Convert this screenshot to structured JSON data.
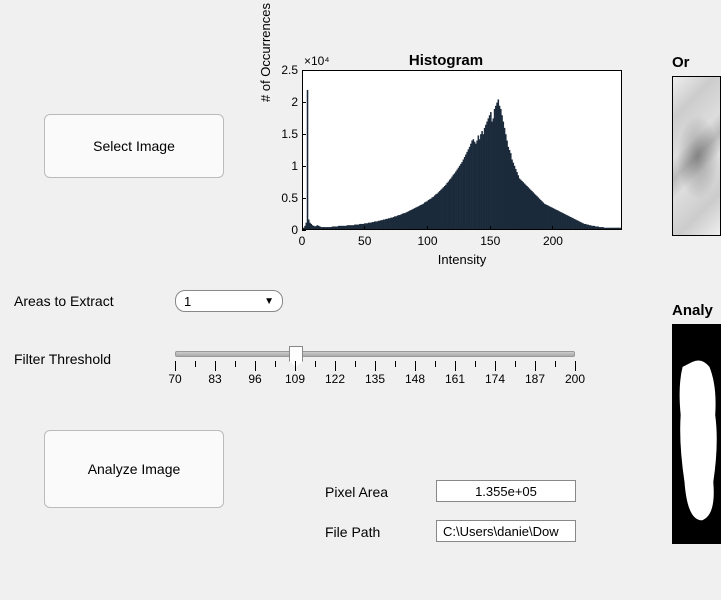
{
  "buttons": {
    "select_image": "Select Image",
    "analyze_image": "Analyze Image"
  },
  "labels": {
    "areas_to_extract": "Areas to Extract",
    "filter_threshold": "Filter Threshold",
    "pixel_area": "Pixel Area",
    "file_path": "File Path"
  },
  "dropdown": {
    "areas_value": "1"
  },
  "slider": {
    "min": 70,
    "max": 200,
    "value": 109,
    "major_step": 13,
    "major_labels": [
      "70",
      "83",
      "96",
      "109",
      "122",
      "135",
      "148",
      "161",
      "174",
      "187",
      "200"
    ],
    "track_color": "#b8b8b8",
    "thumb_color": "#ffffff"
  },
  "fields": {
    "pixel_area": "1.355e+05",
    "file_path": "C:\\Users\\danie\\Dow"
  },
  "histogram": {
    "type": "bar",
    "title": "Histogram",
    "xlabel": "Intensity",
    "ylabel": "# of Occurrences",
    "exponent_label": "×10⁴",
    "xlim": [
      0,
      255
    ],
    "ylim": [
      0,
      2.5
    ],
    "xtick_step": 50,
    "ytick_step": 0.5,
    "xticks": [
      0,
      50,
      100,
      150,
      200
    ],
    "yticks": [
      0,
      0.5,
      1,
      1.5,
      2,
      2.5
    ],
    "background_color": "#ffffff",
    "bar_color": "#1b2a3a",
    "border_color": "#000000",
    "title_fontsize": 15,
    "label_fontsize": 13,
    "tick_fontsize": 12,
    "values": [
      0.02,
      0.05,
      0.1,
      2.2,
      0.15,
      0.1,
      0.08,
      0.06,
      0.05,
      0.04,
      0.05,
      0.06,
      0.05,
      0.04,
      0.03,
      0.03,
      0.03,
      0.03,
      0.03,
      0.03,
      0.03,
      0.03,
      0.03,
      0.04,
      0.04,
      0.04,
      0.04,
      0.04,
      0.05,
      0.05,
      0.05,
      0.05,
      0.05,
      0.05,
      0.05,
      0.06,
      0.06,
      0.06,
      0.06,
      0.06,
      0.06,
      0.07,
      0.07,
      0.07,
      0.07,
      0.08,
      0.08,
      0.08,
      0.08,
      0.09,
      0.09,
      0.09,
      0.1,
      0.1,
      0.1,
      0.11,
      0.11,
      0.12,
      0.12,
      0.12,
      0.13,
      0.13,
      0.14,
      0.14,
      0.15,
      0.15,
      0.16,
      0.16,
      0.17,
      0.17,
      0.18,
      0.18,
      0.19,
      0.2,
      0.2,
      0.21,
      0.22,
      0.22,
      0.23,
      0.24,
      0.25,
      0.25,
      0.26,
      0.27,
      0.28,
      0.29,
      0.3,
      0.31,
      0.32,
      0.33,
      0.34,
      0.35,
      0.36,
      0.37,
      0.38,
      0.39,
      0.4,
      0.42,
      0.43,
      0.44,
      0.46,
      0.47,
      0.48,
      0.5,
      0.51,
      0.53,
      0.55,
      0.56,
      0.58,
      0.6,
      0.62,
      0.64,
      0.66,
      0.68,
      0.7,
      0.73,
      0.75,
      0.78,
      0.8,
      0.83,
      0.86,
      0.88,
      0.91,
      0.94,
      0.97,
      1.0,
      1.03,
      1.06,
      1.1,
      1.14,
      1.18,
      1.22,
      1.26,
      1.3,
      1.35,
      1.4,
      1.42,
      1.38,
      1.35,
      1.4,
      1.48,
      1.42,
      1.5,
      1.55,
      1.5,
      1.6,
      1.65,
      1.7,
      1.75,
      1.8,
      1.85,
      1.7,
      1.75,
      1.9,
      1.95,
      2.0,
      2.05,
      1.95,
      1.9,
      1.8,
      1.7,
      1.6,
      1.5,
      1.4,
      1.3,
      1.25,
      1.2,
      1.1,
      1.05,
      1.0,
      0.95,
      0.9,
      0.85,
      0.8,
      0.78,
      0.76,
      0.74,
      0.72,
      0.7,
      0.68,
      0.66,
      0.64,
      0.62,
      0.6,
      0.58,
      0.56,
      0.54,
      0.52,
      0.5,
      0.48,
      0.46,
      0.44,
      0.42,
      0.4,
      0.39,
      0.38,
      0.37,
      0.36,
      0.35,
      0.34,
      0.33,
      0.32,
      0.31,
      0.3,
      0.29,
      0.28,
      0.27,
      0.26,
      0.25,
      0.24,
      0.23,
      0.22,
      0.21,
      0.2,
      0.19,
      0.18,
      0.17,
      0.16,
      0.15,
      0.14,
      0.13,
      0.12,
      0.11,
      0.1,
      0.09,
      0.08,
      0.08,
      0.07,
      0.07,
      0.06,
      0.06,
      0.05,
      0.05,
      0.05,
      0.04,
      0.04,
      0.04,
      0.03,
      0.03,
      0.03,
      0.03,
      0.02,
      0.02,
      0.02,
      0.02,
      0.02,
      0.02,
      0.02,
      0.02,
      0.02,
      0.02,
      0.02,
      0.02,
      0.02,
      0.02
    ]
  },
  "side_images": {
    "original_title": "Or",
    "analyzed_title": "Analy"
  },
  "colors": {
    "panel_bg": "#f0f0f0",
    "button_bg": "#fafafa",
    "button_border": "#bbbbbb",
    "field_bg": "#ffffff",
    "field_border": "#888888"
  }
}
